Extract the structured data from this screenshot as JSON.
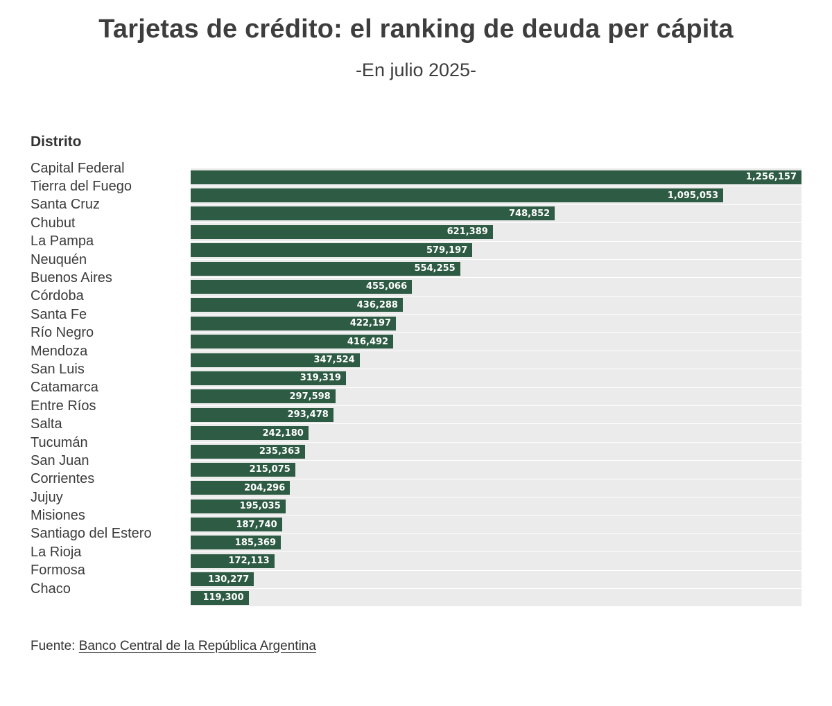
{
  "header": {
    "title": "Tarjetas de crédito: el ranking de deuda per cápita",
    "subtitle": "-En julio 2025-"
  },
  "chart_data": {
    "type": "bar",
    "orientation": "horizontal",
    "title": "Tarjetas de crédito: el ranking de deuda per cápita",
    "subtitle": "-En julio 2025-",
    "column_header": "Distrito",
    "categories": [
      "Capital Federal",
      "Tierra del Fuego",
      "Santa Cruz",
      "Chubut",
      "La Pampa",
      "Neuquén",
      "Buenos Aires",
      "Córdoba",
      "Santa Fe",
      "Río Negro",
      "Mendoza",
      "San Luis",
      "Catamarca",
      "Entre Ríos",
      "Salta",
      "Tucumán",
      "San Juan",
      "Corrientes",
      "Jujuy",
      "Misiones",
      "Santiago del Estero",
      "La Rioja",
      "Formosa",
      "Chaco"
    ],
    "values": [
      1256157,
      1095053,
      748852,
      621389,
      579197,
      554255,
      455066,
      436288,
      422197,
      416492,
      347524,
      319319,
      297598,
      293478,
      242180,
      235363,
      215075,
      204296,
      195035,
      187740,
      185369,
      172113,
      130277,
      119300
    ],
    "value_labels": [
      "1,256,157",
      "1,095,053",
      "748,852",
      "621,389",
      "579,197",
      "554,255",
      "455,066",
      "436,288",
      "422,197",
      "416,492",
      "347,524",
      "319,319",
      "297,598",
      "293,478",
      "242,180",
      "235,363",
      "215,075",
      "204,296",
      "195,035",
      "187,740",
      "185,369",
      "172,113",
      "130,277",
      "119,300"
    ],
    "xlim": [
      0,
      1256157
    ],
    "grid": "row-separators",
    "legend": "none",
    "bar_color": "#2e5b43",
    "plot_background": "#ebebeb",
    "value_label_color": "#ffffff"
  },
  "footer": {
    "source_prefix": "Fuente: ",
    "source_link": "Banco Central de la República Argentina"
  }
}
